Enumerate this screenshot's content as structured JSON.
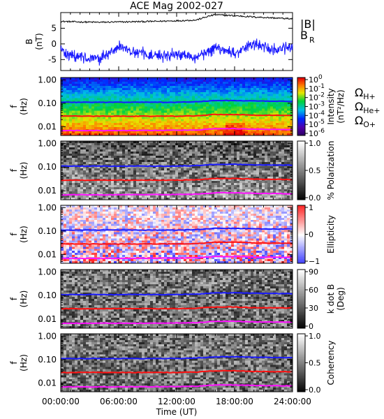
{
  "title": "ACE Mag 2002-027",
  "x_axis": {
    "label": "Time (UT)",
    "ticks": [
      "00:00:00",
      "06:00:00",
      "12:00:00",
      "18:00:00",
      "24:00:00"
    ],
    "range_hours": [
      0,
      24
    ]
  },
  "colors": {
    "black": "#000000",
    "blue": "#1a1aff",
    "red": "#ff1010",
    "magenta": "#ff10ff"
  },
  "panels": [
    {
      "id": "b-field",
      "ylabel_lines": [
        "B",
        "(nT)"
      ],
      "yticks": [
        "5",
        "0",
        "-5"
      ],
      "legend": [
        {
          "text": "|B|",
          "color": "#000000"
        },
        {
          "text": "B",
          "sub": "R",
          "color": "#1a1aff"
        }
      ]
    },
    {
      "id": "intensity",
      "ylabel_lines": [
        "f",
        "(Hz)"
      ],
      "yticks": [
        "1.00",
        "0.10",
        "0.01"
      ],
      "colorbar_title": "Intensity",
      "colorbar_unit": "(nT²/Hz)",
      "colorbar_ticks": [
        {
          "base": "10",
          "exp": "0"
        },
        {
          "base": "10",
          "exp": "-1"
        },
        {
          "base": "10",
          "exp": "-2"
        },
        {
          "base": "10",
          "exp": "-3"
        },
        {
          "base": "10",
          "exp": "-4"
        },
        {
          "base": "10",
          "exp": "-5"
        },
        {
          "base": "10",
          "exp": "-6"
        }
      ],
      "gyro_legend": [
        {
          "sym": "Ω",
          "sub": "H+",
          "color": "#1a1aff"
        },
        {
          "sym": "Ω",
          "sub": "He+",
          "color": "#ff1010"
        },
        {
          "sym": "Ω",
          "sub": "O+",
          "color": "#ff10ff"
        }
      ]
    },
    {
      "id": "polarization",
      "ylabel_lines": [
        "f",
        "(Hz)"
      ],
      "yticks": [
        "1.00",
        "0.10",
        "0.01"
      ],
      "colorbar_title": "% Polarization",
      "colorbar_ticks": [
        "1.0",
        "0.5",
        "0.0"
      ]
    },
    {
      "id": "ellipticity",
      "ylabel_lines": [
        "f",
        "(Hz)"
      ],
      "yticks": [
        "1.00",
        "0.10",
        "0.01"
      ],
      "colorbar_title": "Ellipticity",
      "colorbar_ticks": [
        "1",
        "0",
        "−1"
      ]
    },
    {
      "id": "kdotb",
      "ylabel_lines": [
        "f",
        "(Hz)"
      ],
      "yticks": [
        "1.00",
        "0.10",
        "0.01"
      ],
      "colorbar_title_lines": [
        "k dot B",
        "(Deg)"
      ],
      "colorbar_ticks": [
        "90",
        "60",
        "30",
        "0"
      ]
    },
    {
      "id": "coherency",
      "ylabel_lines": [
        "f",
        "(Hz)"
      ],
      "yticks": [
        "1.00",
        "0.10",
        "0.01"
      ],
      "colorbar_title": "Coherency",
      "colorbar_ticks": [
        "1.0",
        "0.5",
        "0.0"
      ]
    }
  ],
  "chart_data": [
    {
      "type": "line",
      "title": "ACE Mag 2002-027",
      "xlabel": "Time (UT)",
      "ylabel": "B (nT)",
      "xlim": [
        0,
        24
      ],
      "ylim": [
        -8.5,
        10
      ],
      "x": [
        0,
        2,
        4,
        6,
        8,
        10,
        12,
        14,
        15.5,
        16,
        18,
        20,
        22,
        24
      ],
      "series": [
        {
          "name": "|B|",
          "values": [
            7.2,
            7.0,
            6.9,
            7.0,
            7.1,
            7.2,
            7.4,
            7.6,
            9.0,
            9.3,
            9.0,
            8.6,
            8.3,
            8.0
          ]
        },
        {
          "name": "B_R",
          "values": [
            -2,
            -4,
            -5,
            -1,
            -3,
            -4,
            -3,
            -4,
            -2,
            -1,
            -3,
            0,
            -2,
            -1
          ]
        }
      ]
    },
    {
      "type": "heatmap",
      "colorbar_label": "Intensity (nT²/Hz)",
      "colorbar_range": [
        1e-06,
        1
      ],
      "ylabel": "f (Hz)",
      "ylim": [
        0.004,
        1.2
      ],
      "yscale": "log",
      "xlim": [
        0,
        24
      ],
      "overlays": [
        {
          "name": "ΩH+",
          "x": [
            0,
            6,
            12,
            14,
            16,
            18,
            20,
            24
          ],
          "values": [
            0.11,
            0.11,
            0.11,
            0.115,
            0.13,
            0.13,
            0.125,
            0.12
          ]
        },
        {
          "name": "ΩHe+",
          "x": [
            0,
            6,
            12,
            14,
            16,
            18,
            20,
            24
          ],
          "values": [
            0.028,
            0.028,
            0.028,
            0.029,
            0.033,
            0.033,
            0.031,
            0.03
          ]
        },
        {
          "name": "ΩO+",
          "x": [
            0,
            6,
            12,
            14,
            16,
            18,
            20,
            24
          ],
          "values": [
            0.0068,
            0.0068,
            0.007,
            0.0072,
            0.0082,
            0.0082,
            0.0078,
            0.0075
          ]
        }
      ]
    },
    {
      "type": "heatmap",
      "colorbar_label": "% Polarization",
      "colorbar_range": [
        0,
        1
      ],
      "ylabel": "f (Hz)",
      "yscale": "log"
    },
    {
      "type": "heatmap",
      "colorbar_label": "Ellipticity",
      "colorbar_range": [
        -1,
        1
      ],
      "ylabel": "f (Hz)",
      "yscale": "log"
    },
    {
      "type": "heatmap",
      "colorbar_label": "k dot B (Deg)",
      "colorbar_range": [
        0,
        90
      ],
      "ylabel": "f (Hz)",
      "yscale": "log"
    },
    {
      "type": "heatmap",
      "colorbar_label": "Coherency",
      "colorbar_range": [
        0,
        1
      ],
      "ylabel": "f (Hz)",
      "yscale": "log"
    }
  ]
}
